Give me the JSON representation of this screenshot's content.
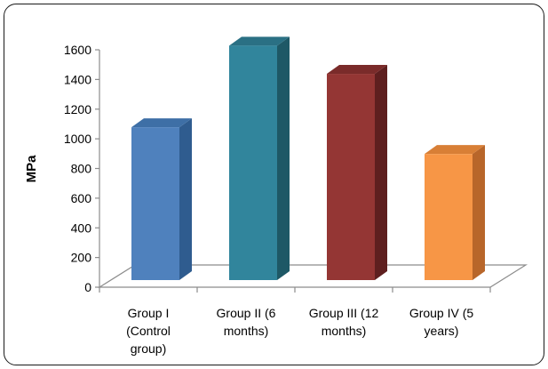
{
  "chart_data": {
    "type": "bar",
    "three_d": true,
    "title": "",
    "xlabel": "",
    "ylabel": "MPa",
    "ylim": [
      0,
      1600
    ],
    "yticks": [
      0,
      200,
      400,
      600,
      800,
      1000,
      1200,
      1400,
      1600
    ],
    "grid": false,
    "legend": "none",
    "categories": [
      [
        "Group I",
        "(Control",
        "group)"
      ],
      [
        "Group II (6",
        "months)"
      ],
      [
        "Group III (12",
        "months)"
      ],
      [
        "Group IV (5",
        "years)"
      ]
    ],
    "values": [
      1030,
      1580,
      1390,
      850
    ],
    "colors": [
      {
        "front": "#4F81BD",
        "side": "#2F5C8F",
        "top": "#3E6FA6"
      },
      {
        "front": "#31859C",
        "side": "#1E5866",
        "top": "#2A7084"
      },
      {
        "front": "#943634",
        "side": "#5E1F1F",
        "top": "#7A2B2A"
      },
      {
        "front": "#F79646",
        "side": "#B8662A",
        "top": "#D87F36"
      }
    ]
  }
}
